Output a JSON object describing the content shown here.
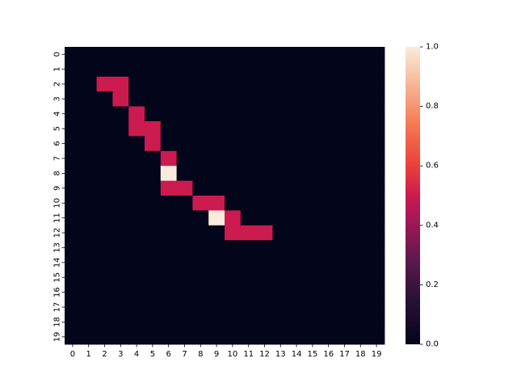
{
  "chart_data": {
    "type": "heatmap",
    "x_tick_labels": [
      "0",
      "1",
      "2",
      "3",
      "4",
      "5",
      "6",
      "7",
      "8",
      "9",
      "10",
      "11",
      "12",
      "13",
      "14",
      "15",
      "16",
      "17",
      "18",
      "19"
    ],
    "y_tick_labels": [
      "0",
      "1",
      "2",
      "3",
      "4",
      "5",
      "6",
      "7",
      "8",
      "9",
      "10",
      "11",
      "12",
      "13",
      "14",
      "15",
      "16",
      "17",
      "18",
      "19"
    ],
    "values": [
      [
        0,
        0,
        0,
        0,
        0,
        0,
        0,
        0,
        0,
        0,
        0,
        0,
        0,
        0,
        0,
        0,
        0,
        0,
        0,
        0
      ],
      [
        0,
        0,
        0,
        0,
        0,
        0,
        0,
        0,
        0,
        0,
        0,
        0,
        0,
        0,
        0,
        0,
        0,
        0,
        0,
        0
      ],
      [
        0,
        0,
        0.5,
        0.5,
        0,
        0,
        0,
        0,
        0,
        0,
        0,
        0,
        0,
        0,
        0,
        0,
        0,
        0,
        0,
        0
      ],
      [
        0,
        0,
        0,
        0.5,
        0,
        0,
        0,
        0,
        0,
        0,
        0,
        0,
        0,
        0,
        0,
        0,
        0,
        0,
        0,
        0
      ],
      [
        0,
        0,
        0,
        0,
        0.5,
        0,
        0,
        0,
        0,
        0,
        0,
        0,
        0,
        0,
        0,
        0,
        0,
        0,
        0,
        0
      ],
      [
        0,
        0,
        0,
        0,
        0.5,
        0.5,
        0,
        0,
        0,
        0,
        0,
        0,
        0,
        0,
        0,
        0,
        0,
        0,
        0,
        0
      ],
      [
        0,
        0,
        0,
        0,
        0,
        0.5,
        0,
        0,
        0,
        0,
        0,
        0,
        0,
        0,
        0,
        0,
        0,
        0,
        0,
        0
      ],
      [
        0,
        0,
        0,
        0,
        0,
        0,
        0.5,
        0,
        0,
        0,
        0,
        0,
        0,
        0,
        0,
        0,
        0,
        0,
        0,
        0
      ],
      [
        0,
        0,
        0,
        0,
        0,
        0,
        1,
        0,
        0,
        0,
        0,
        0,
        0,
        0,
        0,
        0,
        0,
        0,
        0,
        0
      ],
      [
        0,
        0,
        0,
        0,
        0,
        0,
        0.5,
        0.5,
        0,
        0,
        0,
        0,
        0,
        0,
        0,
        0,
        0,
        0,
        0,
        0
      ],
      [
        0,
        0,
        0,
        0,
        0,
        0,
        0,
        0,
        0.5,
        0.5,
        0,
        0,
        0,
        0,
        0,
        0,
        0,
        0,
        0,
        0
      ],
      [
        0,
        0,
        0,
        0,
        0,
        0,
        0,
        0,
        0,
        1,
        0.5,
        0,
        0,
        0,
        0,
        0,
        0,
        0,
        0,
        0
      ],
      [
        0,
        0,
        0,
        0,
        0,
        0,
        0,
        0,
        0,
        0,
        0.5,
        0.5,
        0.5,
        0,
        0,
        0,
        0,
        0,
        0,
        0
      ],
      [
        0,
        0,
        0,
        0,
        0,
        0,
        0,
        0,
        0,
        0,
        0,
        0,
        0,
        0,
        0,
        0,
        0,
        0,
        0,
        0
      ],
      [
        0,
        0,
        0,
        0,
        0,
        0,
        0,
        0,
        0,
        0,
        0,
        0,
        0,
        0,
        0,
        0,
        0,
        0,
        0,
        0
      ],
      [
        0,
        0,
        0,
        0,
        0,
        0,
        0,
        0,
        0,
        0,
        0,
        0,
        0,
        0,
        0,
        0,
        0,
        0,
        0,
        0
      ],
      [
        0,
        0,
        0,
        0,
        0,
        0,
        0,
        0,
        0,
        0,
        0,
        0,
        0,
        0,
        0,
        0,
        0,
        0,
        0,
        0
      ],
      [
        0,
        0,
        0,
        0,
        0,
        0,
        0,
        0,
        0,
        0,
        0,
        0,
        0,
        0,
        0,
        0,
        0,
        0,
        0,
        0
      ],
      [
        0,
        0,
        0,
        0,
        0,
        0,
        0,
        0,
        0,
        0,
        0,
        0,
        0,
        0,
        0,
        0,
        0,
        0,
        0,
        0
      ],
      [
        0,
        0,
        0,
        0,
        0,
        0,
        0,
        0,
        0,
        0,
        0,
        0,
        0,
        0,
        0,
        0,
        0,
        0,
        0,
        0
      ]
    ],
    "colorbar": {
      "range": [
        0,
        1
      ],
      "tick_labels": [
        "0.0",
        "0.2",
        "0.4",
        "0.6",
        "0.8",
        "1.0"
      ],
      "tick_values": [
        0,
        0.2,
        0.4,
        0.6,
        0.8,
        1.0
      ],
      "colormap": "rocket",
      "color_low": "#03051a",
      "color_mid": "#cb1b4f",
      "color_high": "#faebdd"
    },
    "title": "",
    "xlabel": "",
    "ylabel": ""
  }
}
